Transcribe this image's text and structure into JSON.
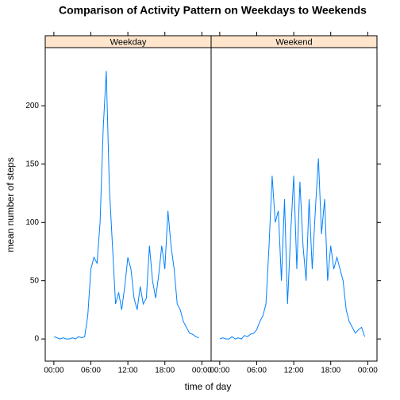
{
  "chart_data": {
    "type": "line",
    "title": "Comparison of Activity Pattern on Weekdays to Weekends",
    "x_label": "time of day",
    "y_label": "mean number of steps",
    "color": "#0080ff",
    "strip_color": "#ffe5cc",
    "x": [
      0,
      0.5,
      1,
      1.5,
      2,
      2.5,
      3,
      3.5,
      4,
      4.5,
      5,
      5.5,
      6,
      6.5,
      7,
      7.5,
      8,
      8.5,
      9,
      9.5,
      10,
      10.5,
      11,
      11.5,
      12,
      12.5,
      13,
      13.5,
      14,
      14.5,
      15,
      15.5,
      16,
      16.5,
      17,
      17.5,
      18,
      18.5,
      19,
      19.5,
      20,
      20.5,
      21,
      21.5,
      22,
      22.5,
      23,
      23.5
    ],
    "series": [
      {
        "name": "Weekday",
        "values": [
          2,
          1,
          0,
          1,
          0,
          0,
          1,
          0,
          2,
          1,
          2,
          20,
          60,
          70,
          65,
          100,
          180,
          230,
          130,
          80,
          30,
          40,
          25,
          45,
          70,
          60,
          35,
          25,
          45,
          30,
          35,
          80,
          50,
          35,
          55,
          80,
          60,
          110,
          80,
          60,
          30,
          25,
          15,
          10,
          5,
          4,
          2,
          1
        ]
      },
      {
        "name": "Weekend",
        "values": [
          0,
          1,
          0,
          0,
          2,
          0,
          1,
          0,
          3,
          2,
          4,
          5,
          8,
          15,
          20,
          30,
          80,
          140,
          100,
          110,
          50,
          120,
          30,
          90,
          140,
          60,
          135,
          80,
          50,
          120,
          60,
          110,
          155,
          90,
          120,
          50,
          80,
          60,
          70,
          60,
          50,
          25,
          15,
          10,
          5,
          8,
          10,
          2
        ]
      }
    ],
    "xlim": [
      -1.4,
      25.5
    ],
    "ylim": [
      -19,
      250
    ],
    "xticks": [
      {
        "value": 0,
        "label": "00:00"
      },
      {
        "value": 6,
        "label": "06:00"
      },
      {
        "value": 12,
        "label": "12:00"
      },
      {
        "value": 18,
        "label": "18:00"
      },
      {
        "value": 24,
        "label": "00:00"
      }
    ],
    "yticks": [
      0,
      50,
      100,
      150,
      200
    ]
  }
}
